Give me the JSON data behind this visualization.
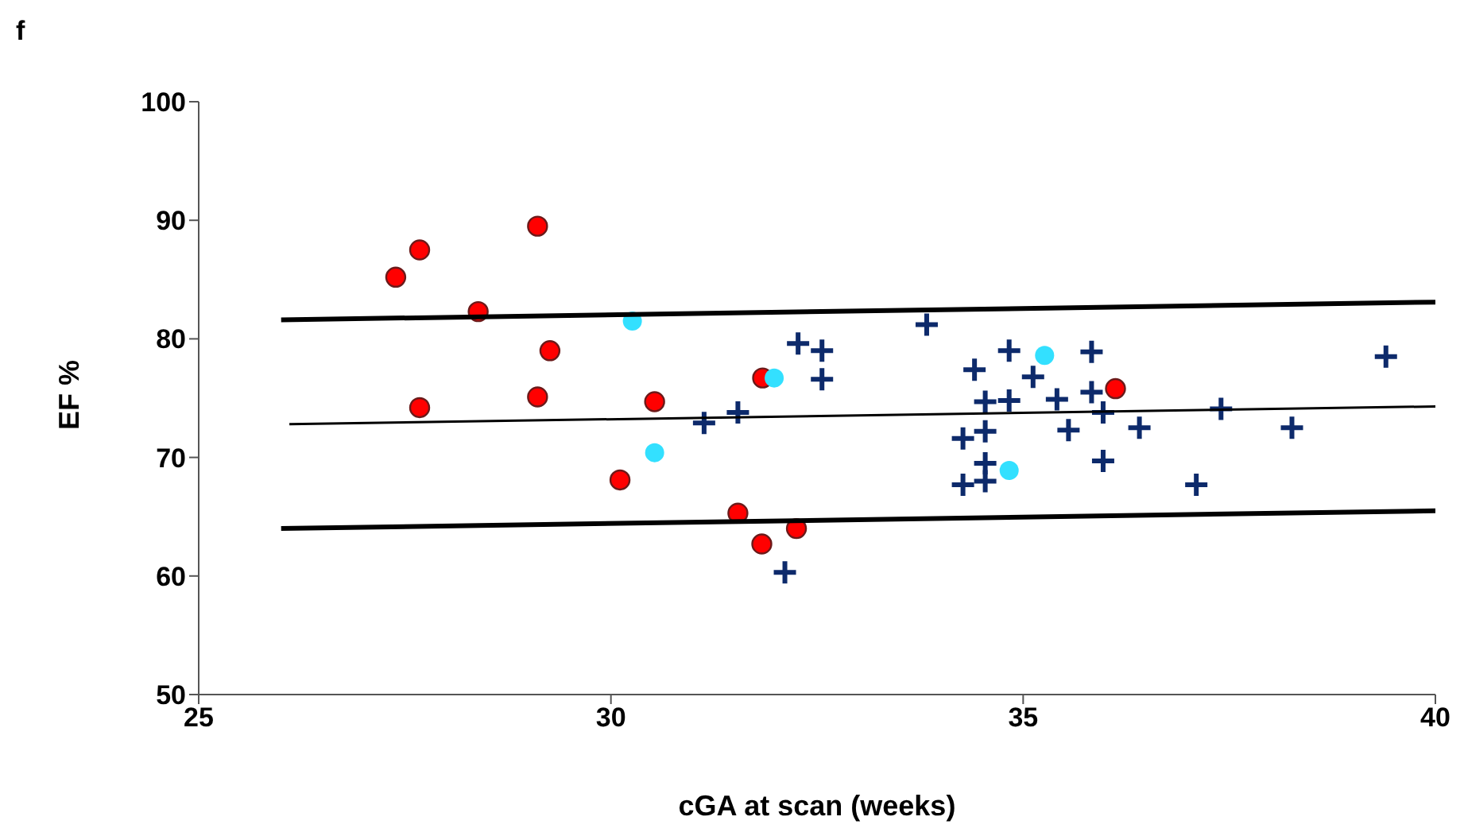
{
  "chart_data": {
    "type": "scatter",
    "title": "f",
    "xlabel": "cGA at scan (weeks)",
    "ylabel": "EF %",
    "xlim": [
      25,
      40
    ],
    "xticks": [
      25,
      30,
      35,
      40
    ],
    "ylim": [
      50,
      100
    ],
    "yticks": [
      50,
      60,
      70,
      80,
      90,
      100
    ],
    "grid": false,
    "series": [
      {
        "marker": "circle",
        "color": "#ff0000",
        "x": [
          27.39,
          27.68,
          29.11,
          28.39,
          29.26,
          27.68,
          29.11,
          30.53,
          30.11,
          31.54,
          31.83,
          32.25,
          31.84,
          36.12
        ],
        "values": [
          85.2,
          87.5,
          89.5,
          82.3,
          79.0,
          74.2,
          75.1,
          74.7,
          68.1,
          65.3,
          62.7,
          64.0,
          76.7,
          75.8
        ]
      },
      {
        "marker": "circle",
        "color": "#33e0ff",
        "x": [
          30.26,
          30.53,
          31.98,
          35.26,
          34.83
        ],
        "values": [
          81.5,
          70.4,
          76.7,
          78.6,
          68.9
        ]
      },
      {
        "marker": "cross",
        "color": "#0d2a6b",
        "x": [
          33.83,
          32.27,
          32.56,
          32.56,
          31.54,
          31.13,
          32.11,
          34.41,
          34.83,
          35.12,
          35.83,
          34.54,
          34.83,
          35.41,
          35.83,
          35.97,
          35.55,
          36.41,
          34.27,
          34.54,
          34.54,
          34.27,
          34.54,
          35.97,
          37.4,
          38.26,
          37.1,
          39.4
        ],
        "values": [
          81.2,
          79.6,
          79.0,
          76.6,
          73.8,
          72.9,
          60.3,
          77.4,
          79.0,
          76.8,
          78.9,
          74.7,
          74.8,
          74.9,
          75.5,
          73.8,
          72.3,
          72.5,
          71.6,
          72.2,
          69.5,
          67.7,
          68.0,
          69.7,
          74.1,
          72.5,
          67.7,
          78.5
        ]
      },
      {
        "type": "line",
        "marker": "none",
        "line_style": "solid",
        "color": "#000000",
        "x": [
          26,
          40
        ],
        "values": [
          81.6,
          83.1
        ]
      },
      {
        "type": "line",
        "marker": "none",
        "line_style": "solid",
        "color": "#000000",
        "x": [
          26.1,
          40
        ],
        "values": [
          72.8,
          74.3
        ]
      },
      {
        "type": "line",
        "marker": "none",
        "line_style": "solid",
        "color": "#000000",
        "x": [
          26,
          40
        ],
        "values": [
          64.0,
          65.5
        ]
      }
    ]
  }
}
